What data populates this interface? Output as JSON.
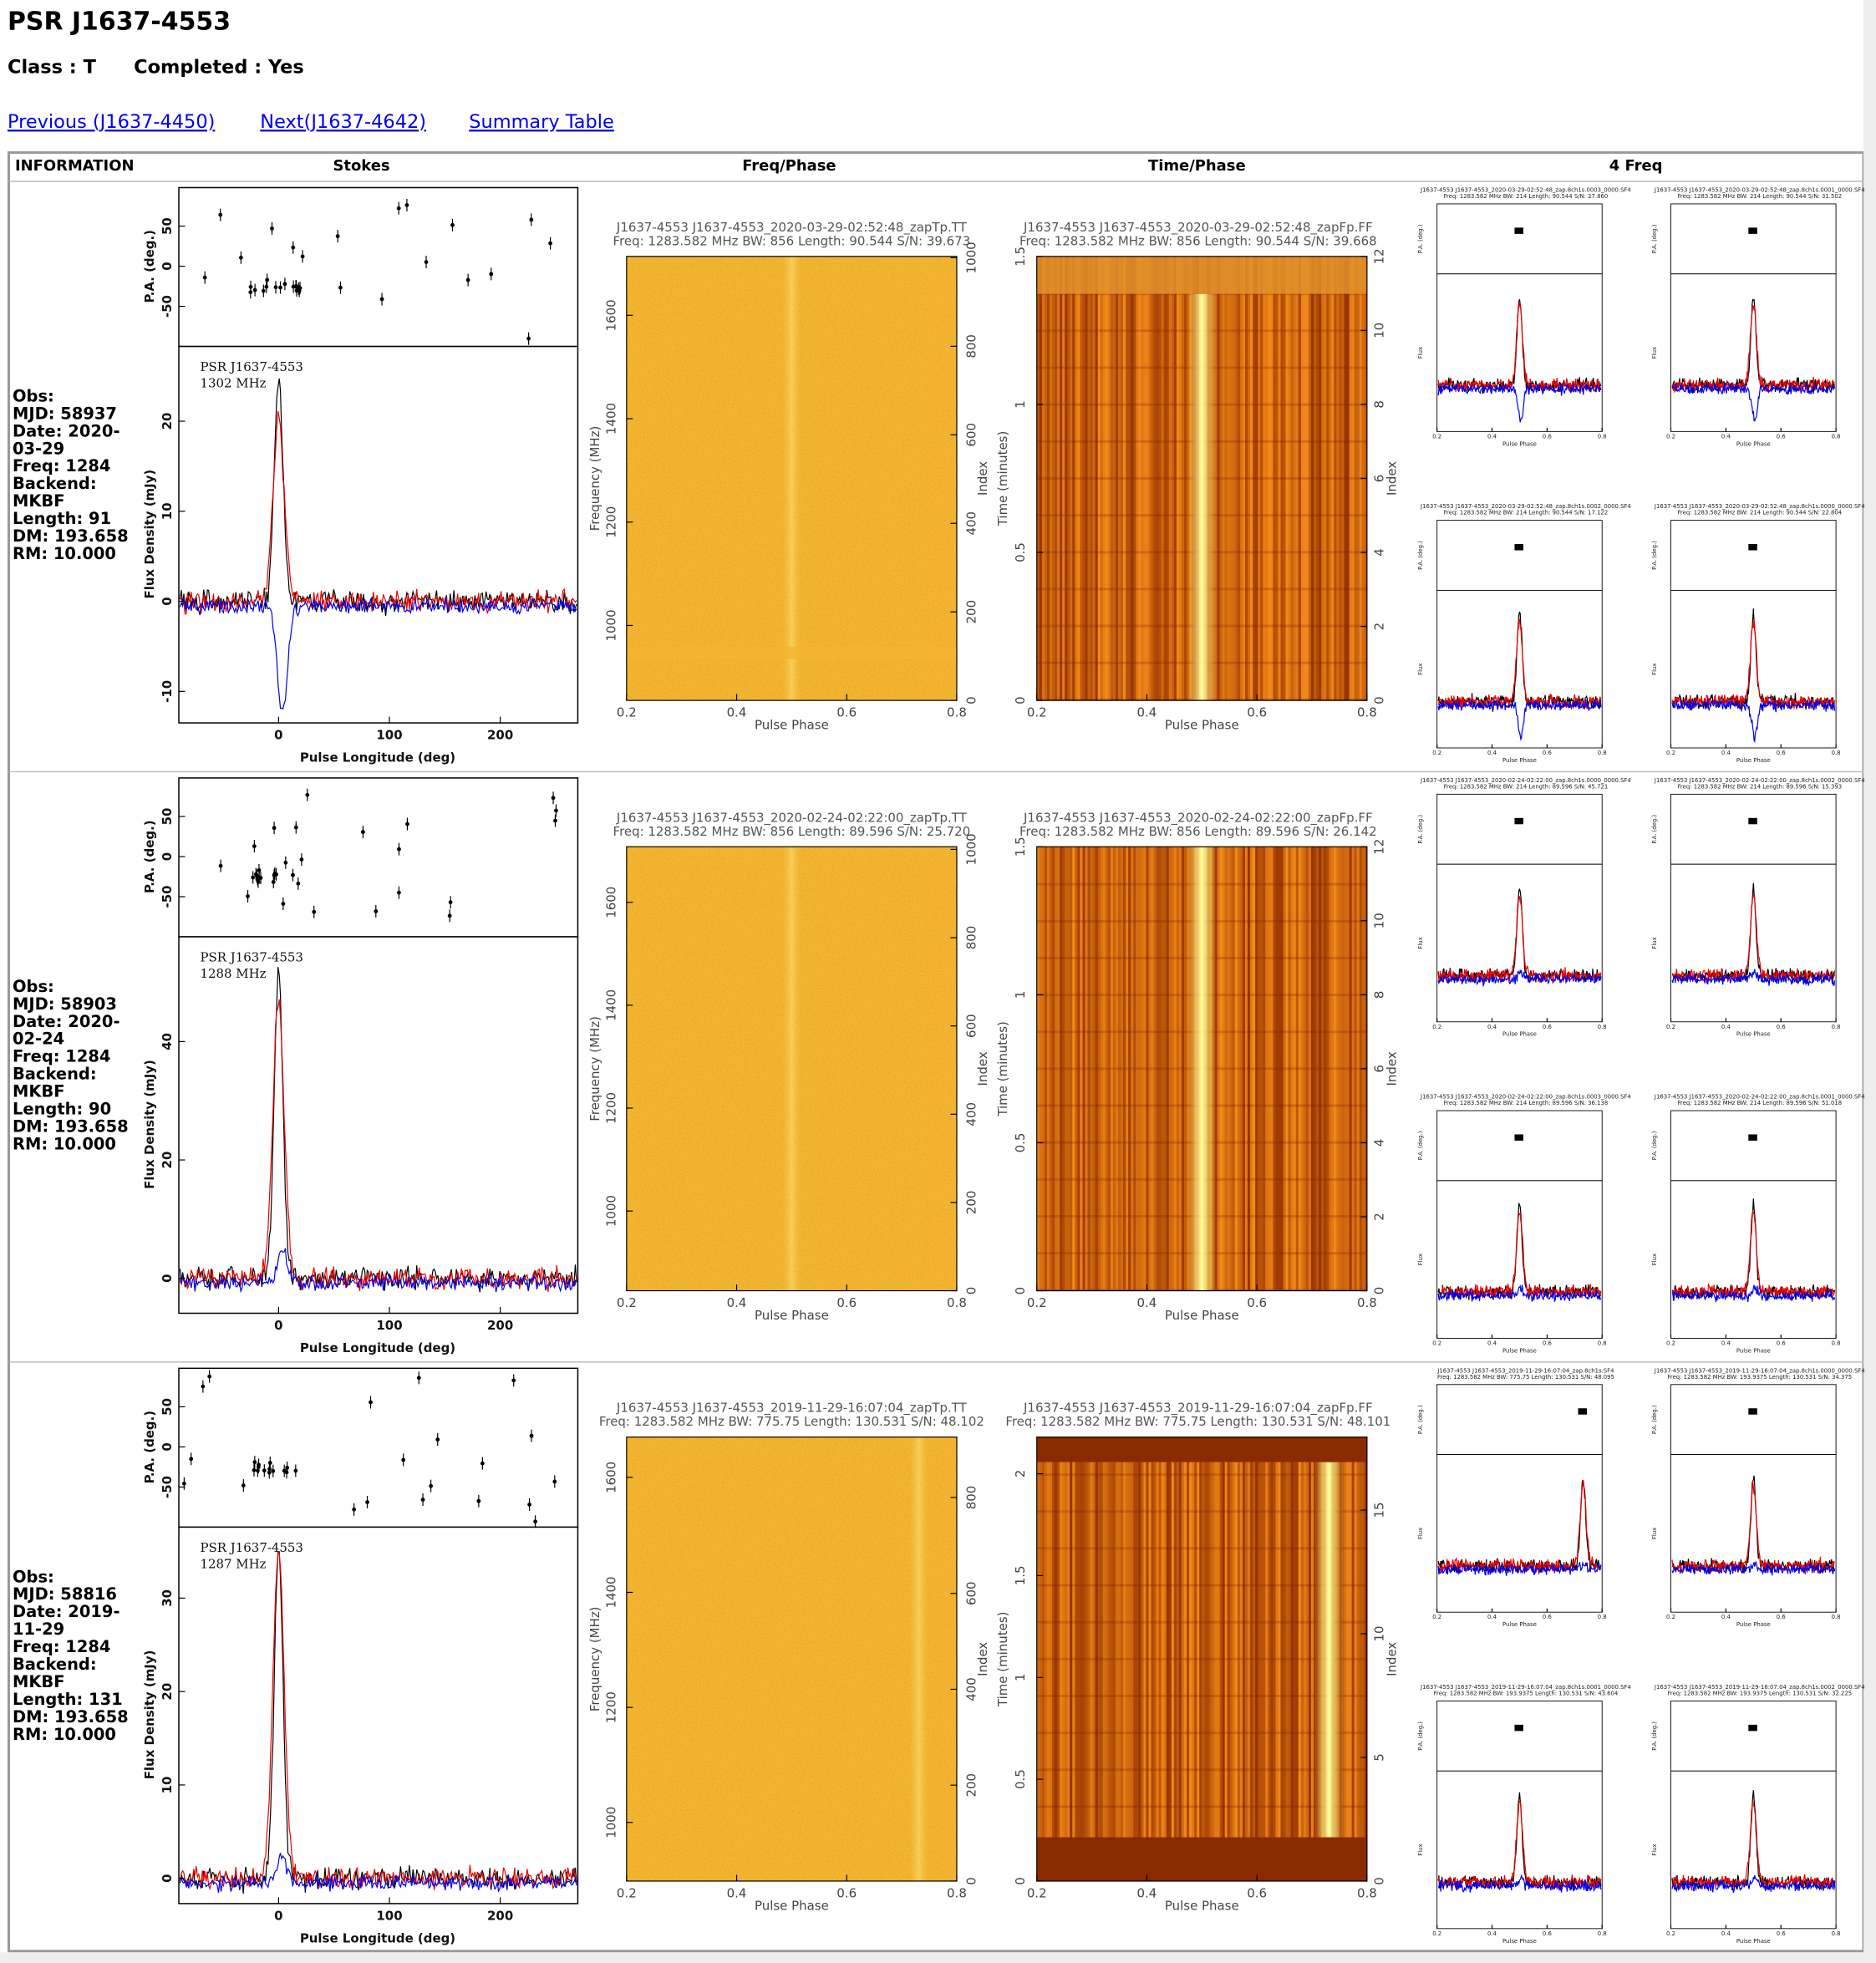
{
  "header": {
    "title": "PSR J1637-4553",
    "class": "Class : T",
    "completed": "Completed : Yes",
    "links": [
      "Previous (J1637-4450)",
      "Next(J1637-4642)",
      "Summary Table"
    ]
  },
  "table": {
    "headers": [
      "INFORMATION",
      "Stokes",
      "Freq/Phase",
      "Time/Phase",
      "4 Freq"
    ],
    "rows": [
      {
        "info": [
          "Obs:",
          "MJD: 58937",
          "Date: 2020-03-29",
          "Freq: 1284",
          "Backend: MKBF",
          "Length: 91",
          "DM: 193.658",
          "RM: 10.000"
        ],
        "stokes": {
          "psr": "PSR J1637-4553",
          "freq": "1302 MHz",
          "pa_label": "P.A. (deg.)",
          "flux_label": "Flux Density (mJy)",
          "xlabel": "Pulse Longitude (deg)",
          "xlim": [
            -90,
            270
          ],
          "xticks": [
            0,
            100,
            200
          ],
          "pa_lim": [
            -100,
            98
          ],
          "pa_ticks": [
            -50,
            0,
            50
          ],
          "flux_lim": [
            -13.5,
            28.3
          ],
          "flux_ticks": [
            -10,
            0,
            10,
            20
          ]
        },
        "freq_phase": {
          "title": "J1637-4553 J1637-4553_2020-03-29-02:52:48_zapTp.TT",
          "subtitle": "Freq: 1283.582 MHz BW: 856 Length: 90.544 S/N: 39.673",
          "xlim": [
            0.2,
            0.8
          ],
          "xticks": [
            0.2,
            0.4,
            0.6,
            0.8
          ],
          "xlabel": "Pulse Phase",
          "ylabel": "Frequency (MHz)",
          "ylim": [
            855,
            1714
          ],
          "yticks": [
            1000,
            1200,
            1400,
            1600
          ],
          "y2label": "Index",
          "y2lim": [
            0,
            1003
          ],
          "y2ticks": [
            0,
            200,
            400,
            600,
            800,
            1000
          ]
        },
        "time_phase": {
          "title": "J1637-4553 J1637-4553_2020-03-29-02:52:48_zapFp.FF",
          "subtitle": "Freq: 1283.582 MHz BW: 856 Length: 90.544 S/N: 39.668",
          "xlim": [
            0.2,
            0.8
          ],
          "xticks": [
            0.2,
            0.4,
            0.6,
            0.8
          ],
          "xlabel": "Pulse Phase",
          "ylabel": "Time (minutes)",
          "ylim": [
            0,
            1.5
          ],
          "yticks": [
            0,
            0.5,
            1,
            1.5
          ],
          "y2label": "Index",
          "y2lim": [
            0,
            12
          ],
          "y2ticks": [
            0,
            2,
            4,
            6,
            8,
            10,
            12
          ]
        },
        "four_freq": [
          {
            "title": "J1637-4553 J1637-4553_2020-03-29-02:52:48_zap.8ch1s.0003_0000.SF4",
            "subtitle": "Freq: 1283.582 MHz BW: 214 Length: 90.544 S/N: 27.860",
            "xlim": [
              0.2,
              0.8
            ],
            "xticks": [
              0.2,
              0.4,
              0.6,
              0.8
            ],
            "xlabel": "Pulse Phase",
            "pa_label": "P.A. (deg.)",
            "flux_label": "Flux"
          },
          {
            "title": "J1637-4553 J1637-4553_2020-03-29-02:52:48_zap.8ch1s.0001_0000.SF4",
            "subtitle": "Freq: 1283.582 MHz BW: 214 Length: 90.544 S/N: 31.502",
            "xlim": [
              0.2,
              0.8
            ],
            "xticks": [
              0.2,
              0.4,
              0.6,
              0.8
            ],
            "xlabel": "Pulse Phase",
            "pa_label": "P.A. (deg.)",
            "flux_label": "Flux"
          },
          {
            "title": "J1637-4553 J1637-4553_2020-03-29-02:52:48_zap.8ch1s.0002_0000.SF4",
            "subtitle": "Freq: 1283.582 MHz BW: 214 Length: 90.544 S/N: 17.122",
            "xlim": [
              0.2,
              0.8
            ],
            "xticks": [
              0.2,
              0.4,
              0.6,
              0.8
            ],
            "xlabel": "Pulse Phase",
            "pa_label": "P.A. (deg.)",
            "flux_label": "Flux"
          },
          {
            "title": "J1637-4553 J1637-4553_2020-03-29-02:52:48_zap.8ch1s.0000_0000.SF4",
            "subtitle": "Freq: 1283.582 MHz BW: 214 Length: 90.544 S/N: 22.804",
            "xlim": [
              0.2,
              0.8
            ],
            "xticks": [
              0.2,
              0.4,
              0.6,
              0.8
            ],
            "xlabel": "Pulse Phase",
            "pa_label": "P.A. (deg.)",
            "flux_label": "Flux"
          }
        ]
      },
      {
        "info": [
          "Obs:",
          "MJD: 58903",
          "Date: 2020-02-24",
          "Freq: 1284",
          "Backend: MKBF",
          "Length: 90",
          "DM: 193.658",
          "RM: 10.000"
        ],
        "stokes": {
          "psr": "PSR J1637-4553",
          "freq": "1288 MHz",
          "pa_label": "P.A. (deg.)",
          "flux_label": "Flux Density (mJy)",
          "xlabel": "Pulse Longitude (deg)",
          "xlim": [
            -90,
            270
          ],
          "xticks": [
            0,
            100,
            200
          ],
          "pa_lim": [
            -100,
            98
          ],
          "pa_ticks": [
            -50,
            0,
            50
          ],
          "flux_lim": [
            -5.9,
            57.7
          ],
          "flux_ticks": [
            0,
            20,
            40
          ]
        },
        "freq_phase": {
          "title": "J1637-4553 J1637-4553_2020-02-24-02:22:00_zapTp.TT",
          "subtitle": "Freq: 1283.582 MHz BW: 856 Length: 89.596 S/N: 25.720",
          "xlim": [
            0.2,
            0.8
          ],
          "xticks": [
            0.2,
            0.4,
            0.6,
            0.8
          ],
          "xlabel": "Pulse Phase",
          "ylabel": "Frequency (MHz)",
          "ylim": [
            845,
            1708
          ],
          "yticks": [
            1000,
            1200,
            1400,
            1600
          ],
          "y2label": "Index",
          "y2lim": [
            0,
            1006
          ],
          "y2ticks": [
            0,
            200,
            400,
            600,
            800,
            1000
          ]
        },
        "time_phase": {
          "title": "J1637-4553 J1637-4553_2020-02-24-02:22:00_zapFp.FF",
          "subtitle": "Freq: 1283.582 MHz BW: 856 Length: 89.596 S/N: 26.142",
          "xlim": [
            0.2,
            0.8
          ],
          "xticks": [
            0.2,
            0.4,
            0.6,
            0.8
          ],
          "xlabel": "Pulse Phase",
          "ylabel": "Time (minutes)",
          "ylim": [
            0,
            1.5
          ],
          "yticks": [
            0,
            0.5,
            1,
            1.5
          ],
          "y2label": "Index",
          "y2lim": [
            0,
            12
          ],
          "y2ticks": [
            0,
            2,
            4,
            6,
            8,
            10,
            12
          ]
        },
        "four_freq": [
          {
            "title": "J1637-4553 J1637-4553_2020-02-24-02:22:00_zap.8ch1s.0000_0000.SF4",
            "subtitle": "Freq: 1283.582 MHz BW: 214 Length: 89.596 S/N: 45.721",
            "xlim": [
              0.2,
              0.8
            ],
            "xticks": [
              0.2,
              0.4,
              0.6,
              0.8
            ],
            "xlabel": "Pulse Phase",
            "pa_label": "P.A. (deg.)",
            "flux_label": "Flux"
          },
          {
            "title": "J1637-4553 J1637-4553_2020-02-24-02:22:00_zap.8ch1s.0002_0000.SF4",
            "subtitle": "Freq: 1283.582 MHz BW: 214 Length: 89.596 S/N: 15.393",
            "xlim": [
              0.2,
              0.8
            ],
            "xticks": [
              0.2,
              0.4,
              0.6,
              0.8
            ],
            "xlabel": "Pulse Phase",
            "pa_label": "P.A. (deg.)",
            "flux_label": "Flux"
          },
          {
            "title": "J1637-4553 J1637-4553_2020-02-24-02:22:00_zap.8ch1s.0003_0000.SF4",
            "subtitle": "Freq: 1283.582 MHz BW: 214 Length: 89.596 S/N: 36.138",
            "xlim": [
              0.2,
              0.8
            ],
            "xticks": [
              0.2,
              0.4,
              0.6,
              0.8
            ],
            "xlabel": "Pulse Phase",
            "pa_label": "P.A. (deg.)",
            "flux_label": "Flux"
          },
          {
            "title": "J1637-4553 J1637-4553_2020-02-24-02:22:00_zap.8ch1s.0001_0000.SF4",
            "subtitle": "Freq: 1283.582 MHz BW: 214 Length: 89.596 S/N: 51.018",
            "xlim": [
              0.2,
              0.8
            ],
            "xticks": [
              0.2,
              0.4,
              0.6,
              0.8
            ],
            "xlabel": "Pulse Phase",
            "pa_label": "P.A. (deg.)",
            "flux_label": "Flux"
          }
        ]
      },
      {
        "info": [
          "Obs:",
          "MJD: 58816",
          "Date: 2019-11-29",
          "Freq: 1284",
          "Backend: MKBF",
          "Length: 131",
          "DM: 193.658",
          "RM: 10.000"
        ],
        "stokes": {
          "psr": "PSR J1637-4553",
          "freq": "1287 MHz",
          "pa_label": "P.A. (deg.)",
          "flux_label": "Flux Density (mJy)",
          "xlabel": "Pulse Longitude (deg)",
          "xlim": [
            -90,
            270
          ],
          "xticks": [
            0,
            100,
            200
          ],
          "pa_lim": [
            -100,
            98
          ],
          "pa_ticks": [
            -50,
            0,
            50
          ],
          "flux_lim": [
            -2.7,
            37.6
          ],
          "flux_ticks": [
            0,
            10,
            20,
            30
          ]
        },
        "freq_phase": {
          "title": "J1637-4553 J1637-4553_2019-11-29-16:07:04_zapTp.TT",
          "subtitle": "Freq: 1283.582 MHz BW: 775.75 Length: 130.531 S/N: 48.102",
          "xlim": [
            0.2,
            0.8
          ],
          "xticks": [
            0.2,
            0.4,
            0.6,
            0.8
          ],
          "xlabel": "Pulse Phase",
          "ylabel": "Frequency (MHz)",
          "ylim": [
            898,
            1670
          ],
          "yticks": [
            1000,
            1200,
            1400,
            1600
          ],
          "y2label": "Index",
          "y2lim": [
            0,
            926
          ],
          "y2ticks": [
            0,
            200,
            400,
            600,
            800
          ]
        },
        "time_phase": {
          "title": "J1637-4553 J1637-4553_2019-11-29-16:07:04_zapFp.FF",
          "subtitle": "Freq: 1283.582 MHz BW: 775.75 Length: 130.531 S/N: 48.101",
          "xlim": [
            0.2,
            0.8
          ],
          "xticks": [
            0.2,
            0.4,
            0.6,
            0.8
          ],
          "xlabel": "Pulse Phase",
          "ylabel": "Time (minutes)",
          "ylim": [
            0,
            2.18
          ],
          "yticks": [
            0,
            0.5,
            1,
            1.5,
            2
          ],
          "y2label": "Index",
          "y2lim": [
            0,
            17.95
          ],
          "y2ticks": [
            0,
            5,
            10,
            15
          ]
        },
        "four_freq": [
          {
            "title": "J1637-4553 J1637-4553_2019-11-29-16:07:04_zap.8ch1s.SF4",
            "subtitle": "Freq: 1283.582 MHz BW: 775.75 Length: 130.531 S/N: 48.095",
            "xlim": [
              0.2,
              0.8
            ],
            "xticks": [
              0.2,
              0.4,
              0.6,
              0.8
            ],
            "xlabel": "Pulse Phase",
            "pa_label": "P.A. (deg.)",
            "flux_label": "Flux"
          },
          {
            "title": "J1637-4553 J1637-4553_2019-11-29-16:07:04_zap.8ch1s.0000_0000.SF4",
            "subtitle": "Freq: 1283.582 MHz BW: 193.9375 Length: 130.531 S/N: 34.375",
            "xlim": [
              0.2,
              0.8
            ],
            "xticks": [
              0.2,
              0.4,
              0.6,
              0.8
            ],
            "xlabel": "Pulse Phase",
            "pa_label": "P.A. (deg.)",
            "flux_label": "Flux"
          },
          {
            "title": "J1637-4553 J1637-4553_2019-11-29-16:07:04_zap.8ch1s.0001_0000.SF4",
            "subtitle": "Freq: 1283.582 MHz BW: 193.9375 Length: 130.531 S/N: 43.604",
            "xlim": [
              0.2,
              0.8
            ],
            "xticks": [
              0.2,
              0.4,
              0.6,
              0.8
            ],
            "xlabel": "Pulse Phase",
            "pa_label": "P.A. (deg.)",
            "flux_label": "Flux"
          },
          {
            "title": "J1637-4553 J1637-4553_2019-11-29-16:07:04_zap.8ch1s.0002_0000.SF4",
            "subtitle": "Freq: 1283.582 MHz BW: 193.9375 Length: 130.531 S/N: 32.225",
            "xlim": [
              0.2,
              0.8
            ],
            "xticks": [
              0.2,
              0.4,
              0.6,
              0.8
            ],
            "xlabel": "Pulse Phase",
            "pa_label": "P.A. (deg.)",
            "flux_label": "Flux"
          }
        ]
      }
    ]
  }
}
